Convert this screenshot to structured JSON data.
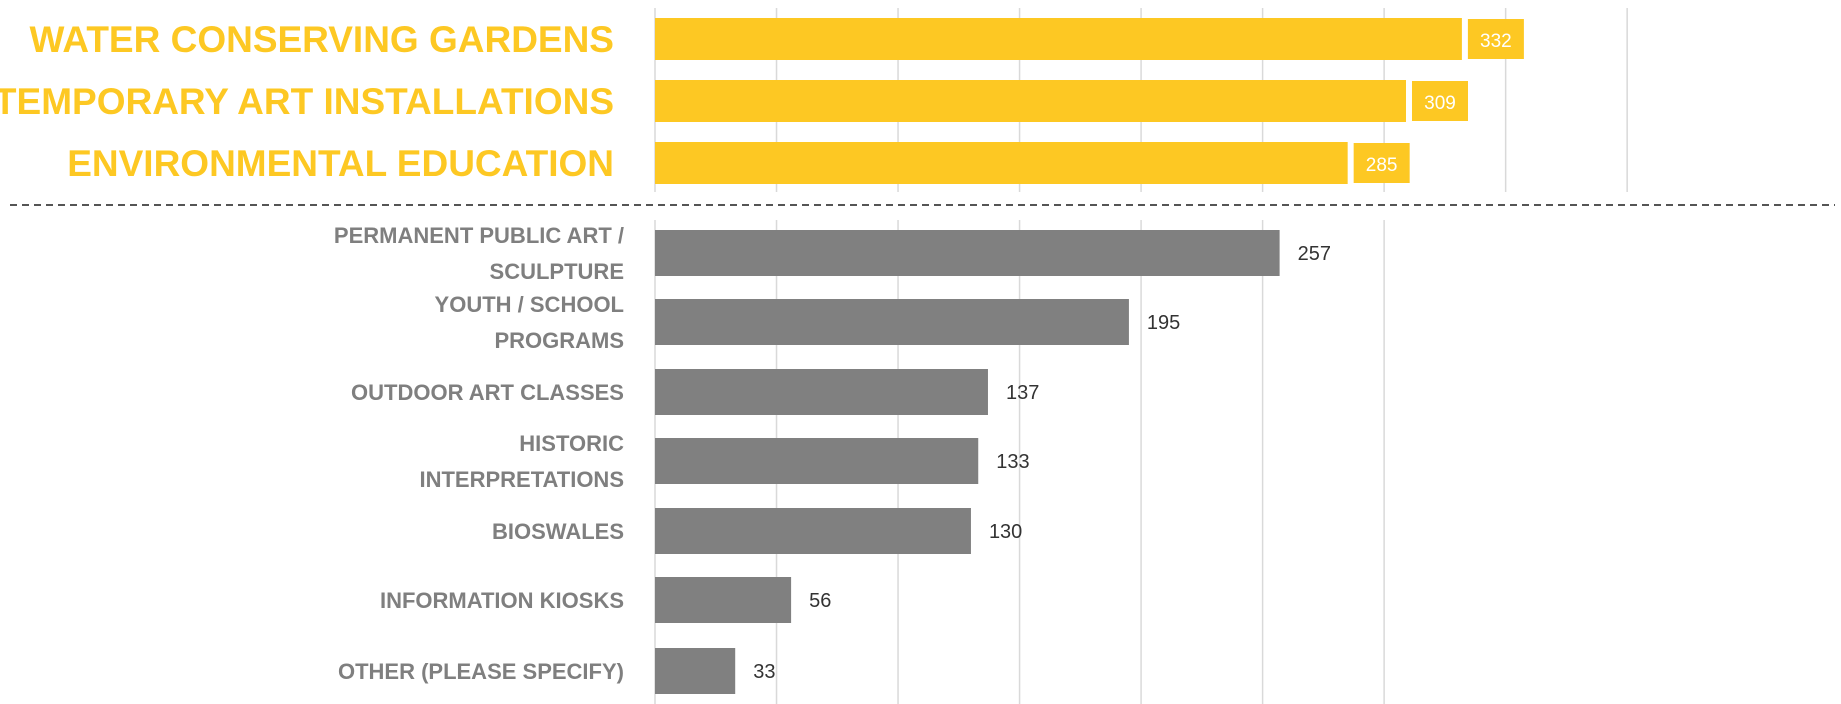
{
  "colors": {
    "highlight": "#FDC823",
    "bar": "#808080",
    "highlight_label": "#FDC823",
    "label": "#7F7F7F",
    "grid": "#D9D9D9",
    "divider": "#555555"
  },
  "chart_data": [
    {
      "type": "bar",
      "orientation": "horizontal",
      "group": "top",
      "categories": [
        "WATER CONSERVING GARDENS",
        "TEMPORARY ART INSTALLATIONS",
        "ENVIRONMENTAL EDUCATION"
      ],
      "values": [
        332,
        309,
        285
      ],
      "data_labels": [
        "332",
        "309",
        "285"
      ],
      "xlim": [
        0,
        400
      ],
      "grid": true,
      "title": "",
      "xlabel": "",
      "ylabel": ""
    },
    {
      "type": "bar",
      "orientation": "horizontal",
      "group": "bottom",
      "categories": [
        [
          "PERMANENT PUBLIC ART /",
          "SCULPTURE"
        ],
        [
          "YOUTH / SCHOOL",
          "PROGRAMS"
        ],
        [
          "OUTDOOR  ART CLASSES"
        ],
        [
          "HISTORIC",
          "INTERPRETATIONS"
        ],
        [
          "BIOSWALES"
        ],
        [
          "INFORMATION KIOSKS"
        ],
        [
          "OTHER (PLEASE SPECIFY)"
        ]
      ],
      "values": [
        257,
        195,
        137,
        133,
        130,
        56,
        33
      ],
      "data_labels": [
        "257",
        "195",
        "137",
        "133",
        "130",
        "56",
        "33"
      ],
      "xlim": [
        0,
        400
      ],
      "grid": true,
      "title": "",
      "xlabel": "",
      "ylabel": ""
    }
  ]
}
